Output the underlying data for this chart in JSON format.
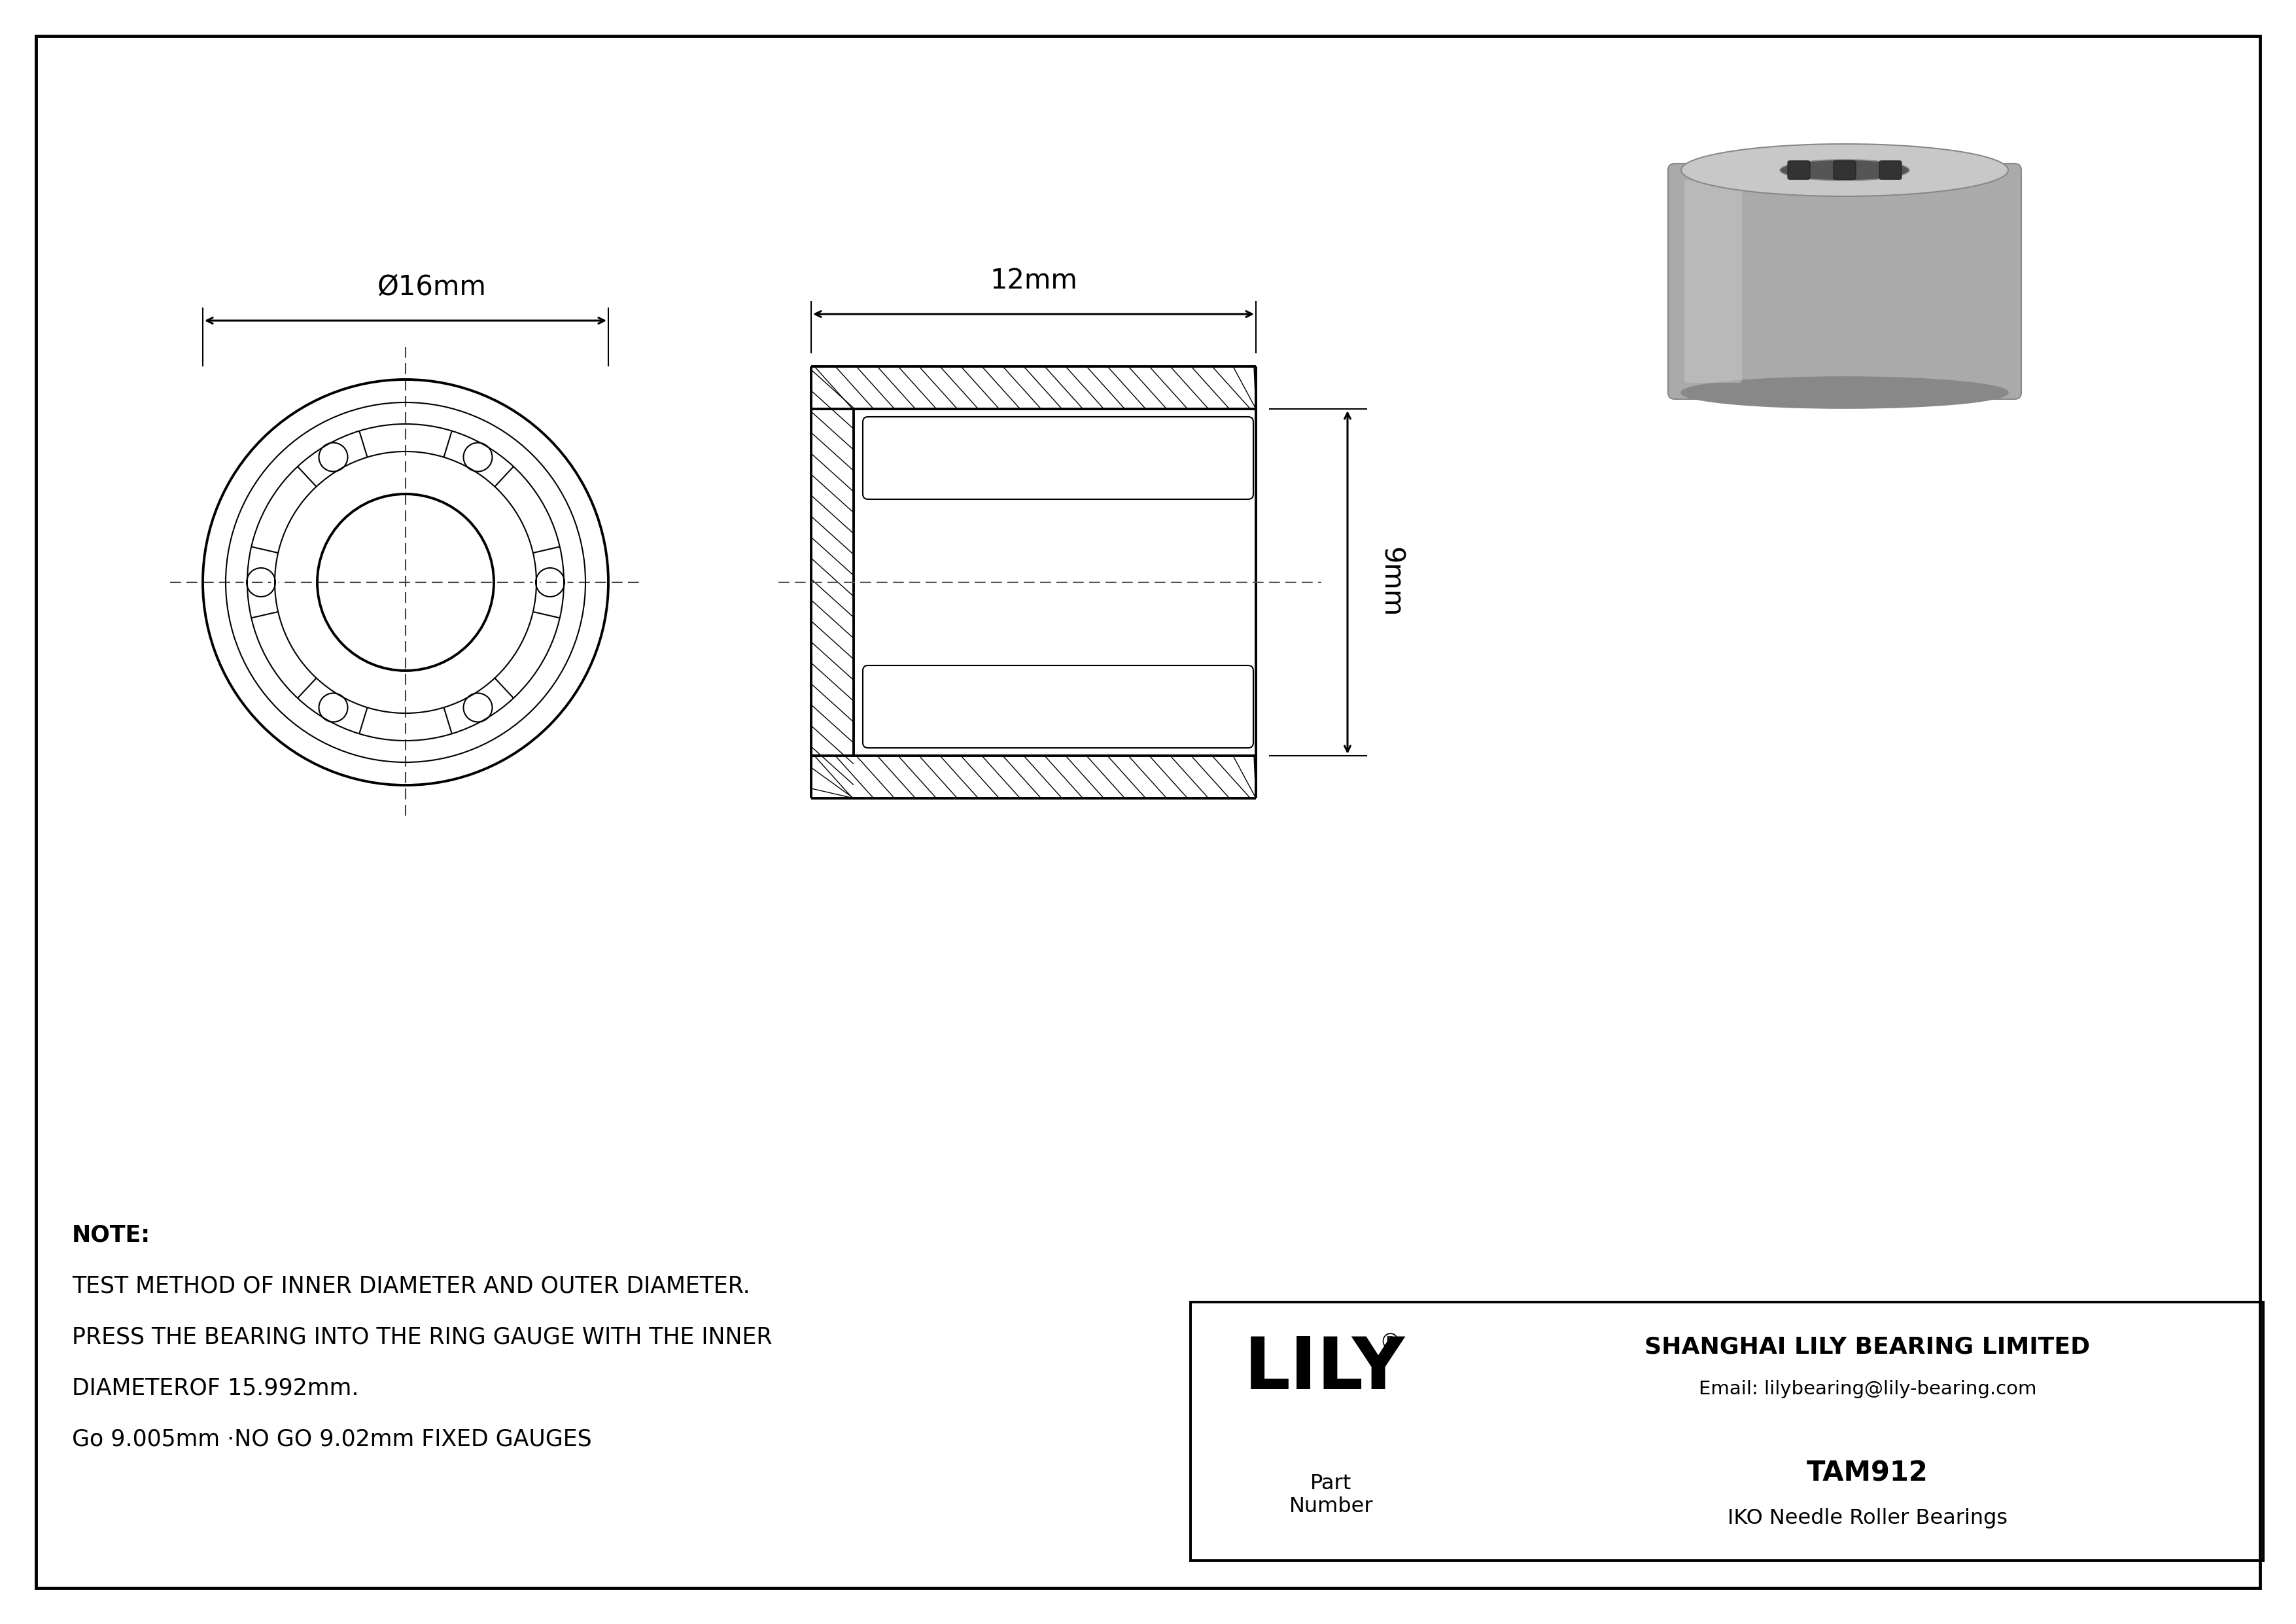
{
  "bg_color": "#ffffff",
  "line_color": "#000000",
  "fig_width": 35.1,
  "fig_height": 24.82,
  "note_lines": [
    "NOTE:",
    "TEST METHOD OF INNER DIAMETER AND OUTER DIAMETER.",
    "PRESS THE BEARING INTO THE RING GAUGE WITH THE INNER",
    "DIAMETEROF 15.992mm.",
    "Go 9.005mm ·NO GO 9.02mm FIXED GAUGES"
  ],
  "lily_logo": "LILY",
  "lily_sup": "®",
  "company_name": "SHANGHAI LILY BEARING LIMITED",
  "company_email": "Email: lilybearing@lily-bearing.com",
  "part_label": "Part\nNumber",
  "part_number": "TAM912",
  "part_desc": "IKO Needle Roller Bearings",
  "dim_outer": "Ø16mm",
  "dim_width": "12mm",
  "dim_height": "9mm"
}
